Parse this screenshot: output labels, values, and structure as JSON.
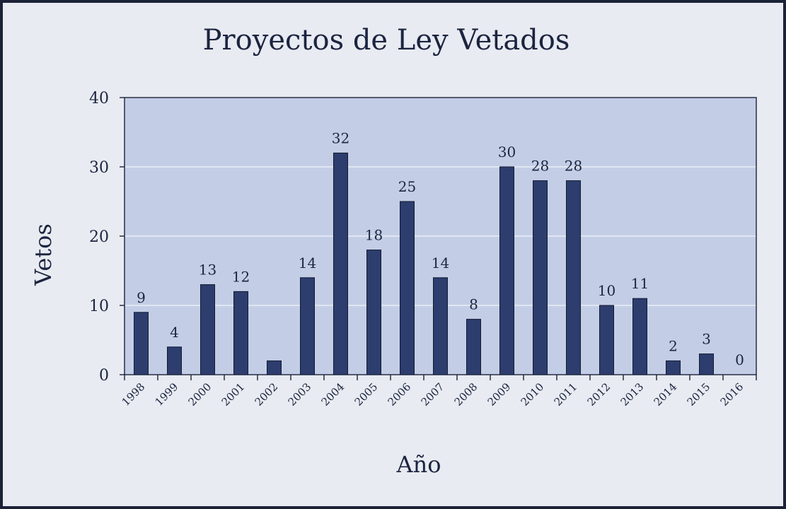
{
  "chart_data": {
    "type": "bar",
    "title": "Proyectos de Ley Vetados",
    "xlabel": "Año",
    "ylabel": "Vetos",
    "categories": [
      "1998",
      "1999",
      "2000",
      "2001",
      "2002",
      "2003",
      "2004",
      "2005",
      "2006",
      "2007",
      "2008",
      "2009",
      "2010",
      "2011",
      "2012",
      "2013",
      "2014",
      "2015",
      "2016"
    ],
    "values": [
      9,
      4,
      13,
      12,
      2,
      14,
      32,
      18,
      25,
      14,
      8,
      30,
      28,
      28,
      10,
      11,
      2,
      3,
      0
    ],
    "data_labels": [
      "9",
      "4",
      "13",
      "12",
      "",
      "14",
      "32",
      "18",
      "25",
      "14",
      "8",
      "30",
      "28",
      "28",
      "10",
      "11",
      "2",
      "3",
      "0"
    ],
    "ylim": [
      0,
      40
    ],
    "yticks": [
      0,
      10,
      20,
      30,
      40
    ],
    "grid": true,
    "legend": "none",
    "colors": {
      "bar": "#2c3d6e",
      "plot_background": "#c3cee6",
      "page_background": "#e8ebf1",
      "border": "#1b2238",
      "gridline": "#f2f4f9"
    }
  }
}
